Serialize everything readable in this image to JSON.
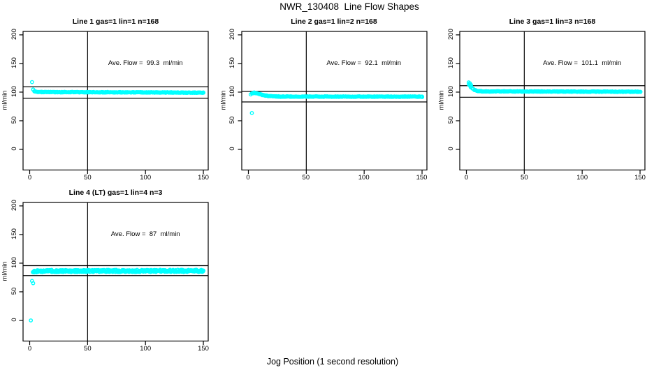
{
  "title": "NWR_130408  Line Flow Shapes",
  "chart_data": {
    "type": "scatter",
    "title": "NWR_130408  Line Flow Shapes",
    "xlabel": "Jog Position (1 second resolution)",
    "ylabel": "ml/min",
    "x_ticks": [
      0,
      50,
      100,
      150
    ],
    "y_ticks": [
      0,
      50,
      100,
      150,
      200
    ],
    "xlim": [
      -6,
      154
    ],
    "ylim": [
      -36,
      206
    ],
    "grid": false,
    "legend_position": "none",
    "vline_x": 50,
    "point_color": "#00ffff",
    "axis_color": "#000000",
    "marker": "open-circle",
    "panels": [
      {
        "title": "Line 1 gas=1 lin=1 n=168",
        "line": 1,
        "gas": 1,
        "lin": 1,
        "n": 168,
        "ave_flow_ml_min": 99.3,
        "annotation": "Ave. Flow =  99.3  ml/min",
        "ref_lines": [
          109.2,
          89.4
        ],
        "outlier_points": [
          [
            2,
            117.5
          ]
        ],
        "profile_points": [
          [
            3,
            104.5
          ],
          [
            4,
            101.5
          ],
          [
            6,
            100.4
          ],
          [
            12,
            100
          ],
          [
            80,
            99.7
          ],
          [
            150,
            99
          ]
        ],
        "x_range": [
          2,
          150
        ],
        "steady_value": 100,
        "jitter": 0.55,
        "samples_per_x": 2
      },
      {
        "title": "Line 2 gas=1 lin=2 n=168",
        "line": 2,
        "gas": 1,
        "lin": 2,
        "n": 168,
        "ave_flow_ml_min": 92.1,
        "annotation": "Ave. Flow =  92.1  ml/min",
        "ref_lines": [
          101.3,
          82.9
        ],
        "outlier_points": [
          [
            2,
            96
          ],
          [
            3,
            63.5
          ]
        ],
        "profile_points": [
          [
            3,
            97.5
          ],
          [
            5,
            99
          ],
          [
            8,
            97.8
          ],
          [
            12,
            95
          ],
          [
            18,
            93
          ],
          [
            28,
            92.2
          ],
          [
            150,
            92
          ]
        ],
        "x_range": [
          2,
          150
        ],
        "steady_value": 92,
        "jitter": 0.55,
        "samples_per_x": 2
      },
      {
        "title": "Line 3 gas=1 lin=3 n=168",
        "line": 3,
        "gas": 1,
        "lin": 3,
        "n": 168,
        "ave_flow_ml_min": 101.1,
        "annotation": "Ave. Flow =  101.1  ml/min",
        "ref_lines": [
          111.2,
          91.0
        ],
        "outlier_points": [
          [
            2,
            117
          ],
          [
            2,
            113.5
          ],
          [
            3,
            115.5
          ],
          [
            3,
            111.5
          ],
          [
            4,
            112.5
          ]
        ],
        "profile_points": [
          [
            4,
            109
          ],
          [
            5,
            106.5
          ],
          [
            7,
            103.5
          ],
          [
            10,
            102
          ],
          [
            15,
            101.3
          ],
          [
            80,
            101
          ],
          [
            150,
            100.6
          ]
        ],
        "x_range": [
          2,
          150
        ],
        "steady_value": 101,
        "jitter": 0.55,
        "samples_per_x": 2
      },
      {
        "title": "Line 4 (LT) gas=1 lin=4 n=3",
        "line": 4,
        "gas": 1,
        "lin": 4,
        "n": 3,
        "lt": true,
        "ave_flow_ml_min": 87,
        "annotation": "Ave. Flow =  87  ml/min",
        "ref_lines": [
          95.7,
          78.3
        ],
        "outlier_points": [
          [
            1,
            0
          ],
          [
            2,
            69
          ],
          [
            3,
            65
          ]
        ],
        "profile_points": [
          [
            3,
            84.5
          ],
          [
            5,
            85.8
          ],
          [
            10,
            86.3
          ],
          [
            150,
            86.5
          ]
        ],
        "x_range": [
          1,
          150
        ],
        "steady_value": 86.5,
        "jitter": 2.0,
        "samples_per_x": 3
      }
    ]
  }
}
